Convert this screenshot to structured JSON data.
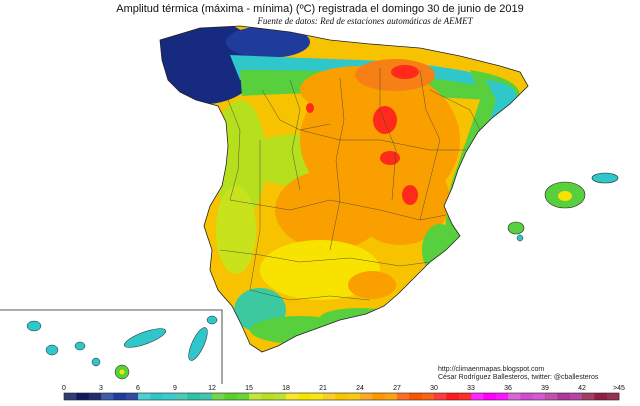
{
  "title": "Amplitud térmica (máxima - mínima) (ºC) registrada el domingo 30 de junio de 2019",
  "source": "Fuente de datos: Red de estaciones automáticas de AEMET",
  "credits": {
    "url": "http://climaenmapas.blogspot.com",
    "author": "César Rodríguez Ballesteros, twitter: @cballesteros"
  },
  "legend": {
    "ticks": [
      "0",
      "3",
      "6",
      "9",
      "12",
      "15",
      "18",
      "21",
      "24",
      "27",
      "30",
      "33",
      "36",
      "39",
      "42",
      ">45"
    ],
    "colors": [
      "#0d1b5e",
      "#1f3c9c",
      "#2fc7c9",
      "#2ec1a8",
      "#5ccf2a",
      "#b6e01e",
      "#f7e500",
      "#f9c500",
      "#fb9a00",
      "#fb5500",
      "#ff1a1a",
      "#ff00ff",
      "#d24bd0",
      "#b0369a",
      "#8e1f45",
      "#8a1010"
    ]
  },
  "colors": {
    "deep_blue": "#162a80",
    "cyan": "#2fc7c9",
    "teal": "#3cc9a0",
    "green": "#58cf3c",
    "yellow_green": "#c8e31c",
    "yellow": "#f8e300",
    "gold": "#f7c300",
    "orange": "#f9a000",
    "dark_orange": "#f68015",
    "red": "#ff2a1a"
  }
}
